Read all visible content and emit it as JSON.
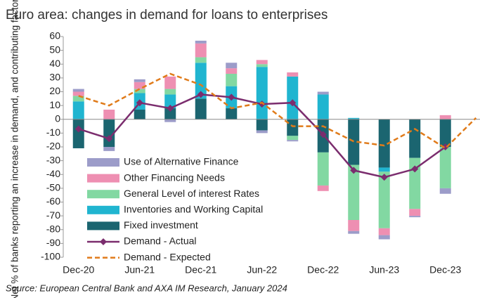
{
  "chart_data": {
    "type": "bar",
    "title": "Euro area: changes in demand for loans to enterprises",
    "y_label": "Net % of banks reporting an increase in demand, and contributing factors",
    "source": "Source: European Central Bank and AXA IM Research, January 2024",
    "categories": [
      "Dec-20",
      null,
      "Jun-21",
      null,
      "Dec-21",
      null,
      "Jun-22",
      null,
      "Dec-22",
      null,
      "Jun-23",
      null,
      "Dec-23",
      null
    ],
    "ylim": [
      -100,
      60
    ],
    "yticks": [
      60,
      50,
      40,
      30,
      20,
      10,
      0,
      -10,
      -20,
      -30,
      -40,
      -50,
      -60,
      -70,
      -80,
      -90,
      -100
    ],
    "series": [
      {
        "name": "Use of Alternative Finance",
        "type": "bar",
        "color": "#9c9cc9",
        "values": [
          2,
          -3,
          2,
          -2,
          2,
          4,
          -2,
          -1,
          2,
          -2,
          -3,
          -1,
          -4,
          null
        ]
      },
      {
        "name": "Other Financing Needs",
        "type": "bar",
        "color": "#ee8fb2",
        "values": [
          3,
          7,
          5,
          9,
          10,
          4,
          3,
          3,
          -4,
          -8,
          -5,
          -5,
          3,
          null
        ]
      },
      {
        "name": "General Level of interest Rates",
        "type": "bar",
        "color": "#82d8a2",
        "values": [
          4,
          0,
          3,
          4,
          4,
          9,
          2,
          -3,
          -24,
          -40,
          -41,
          -37,
          -30,
          null
        ]
      },
      {
        "name": "Inventories and Working Capital",
        "type": "bar",
        "color": "#20b5d0",
        "values": [
          13,
          0,
          12,
          10,
          26,
          16,
          38,
          31,
          18,
          1,
          -3,
          0,
          0,
          null
        ]
      },
      {
        "name": "Fixed investment",
        "type": "bar",
        "color": "#1b6570",
        "values": [
          -21,
          -20,
          7,
          8,
          15,
          8,
          -8,
          -12,
          -24,
          -33,
          -35,
          -28,
          -20,
          null
        ]
      },
      {
        "name": "Demand - Actual",
        "type": "line",
        "color": "#7b2d6e",
        "values": [
          -7,
          -14,
          12,
          8,
          18,
          16,
          11,
          12,
          -11,
          -37,
          -42,
          -36,
          -20,
          null
        ]
      },
      {
        "name": "Demand - Expected",
        "type": "line",
        "dashed": true,
        "color": "#e07b1a",
        "values": [
          17,
          10,
          22,
          33,
          25,
          8,
          12,
          -5,
          -5,
          -16,
          -19,
          -7,
          -21,
          1
        ]
      }
    ]
  }
}
